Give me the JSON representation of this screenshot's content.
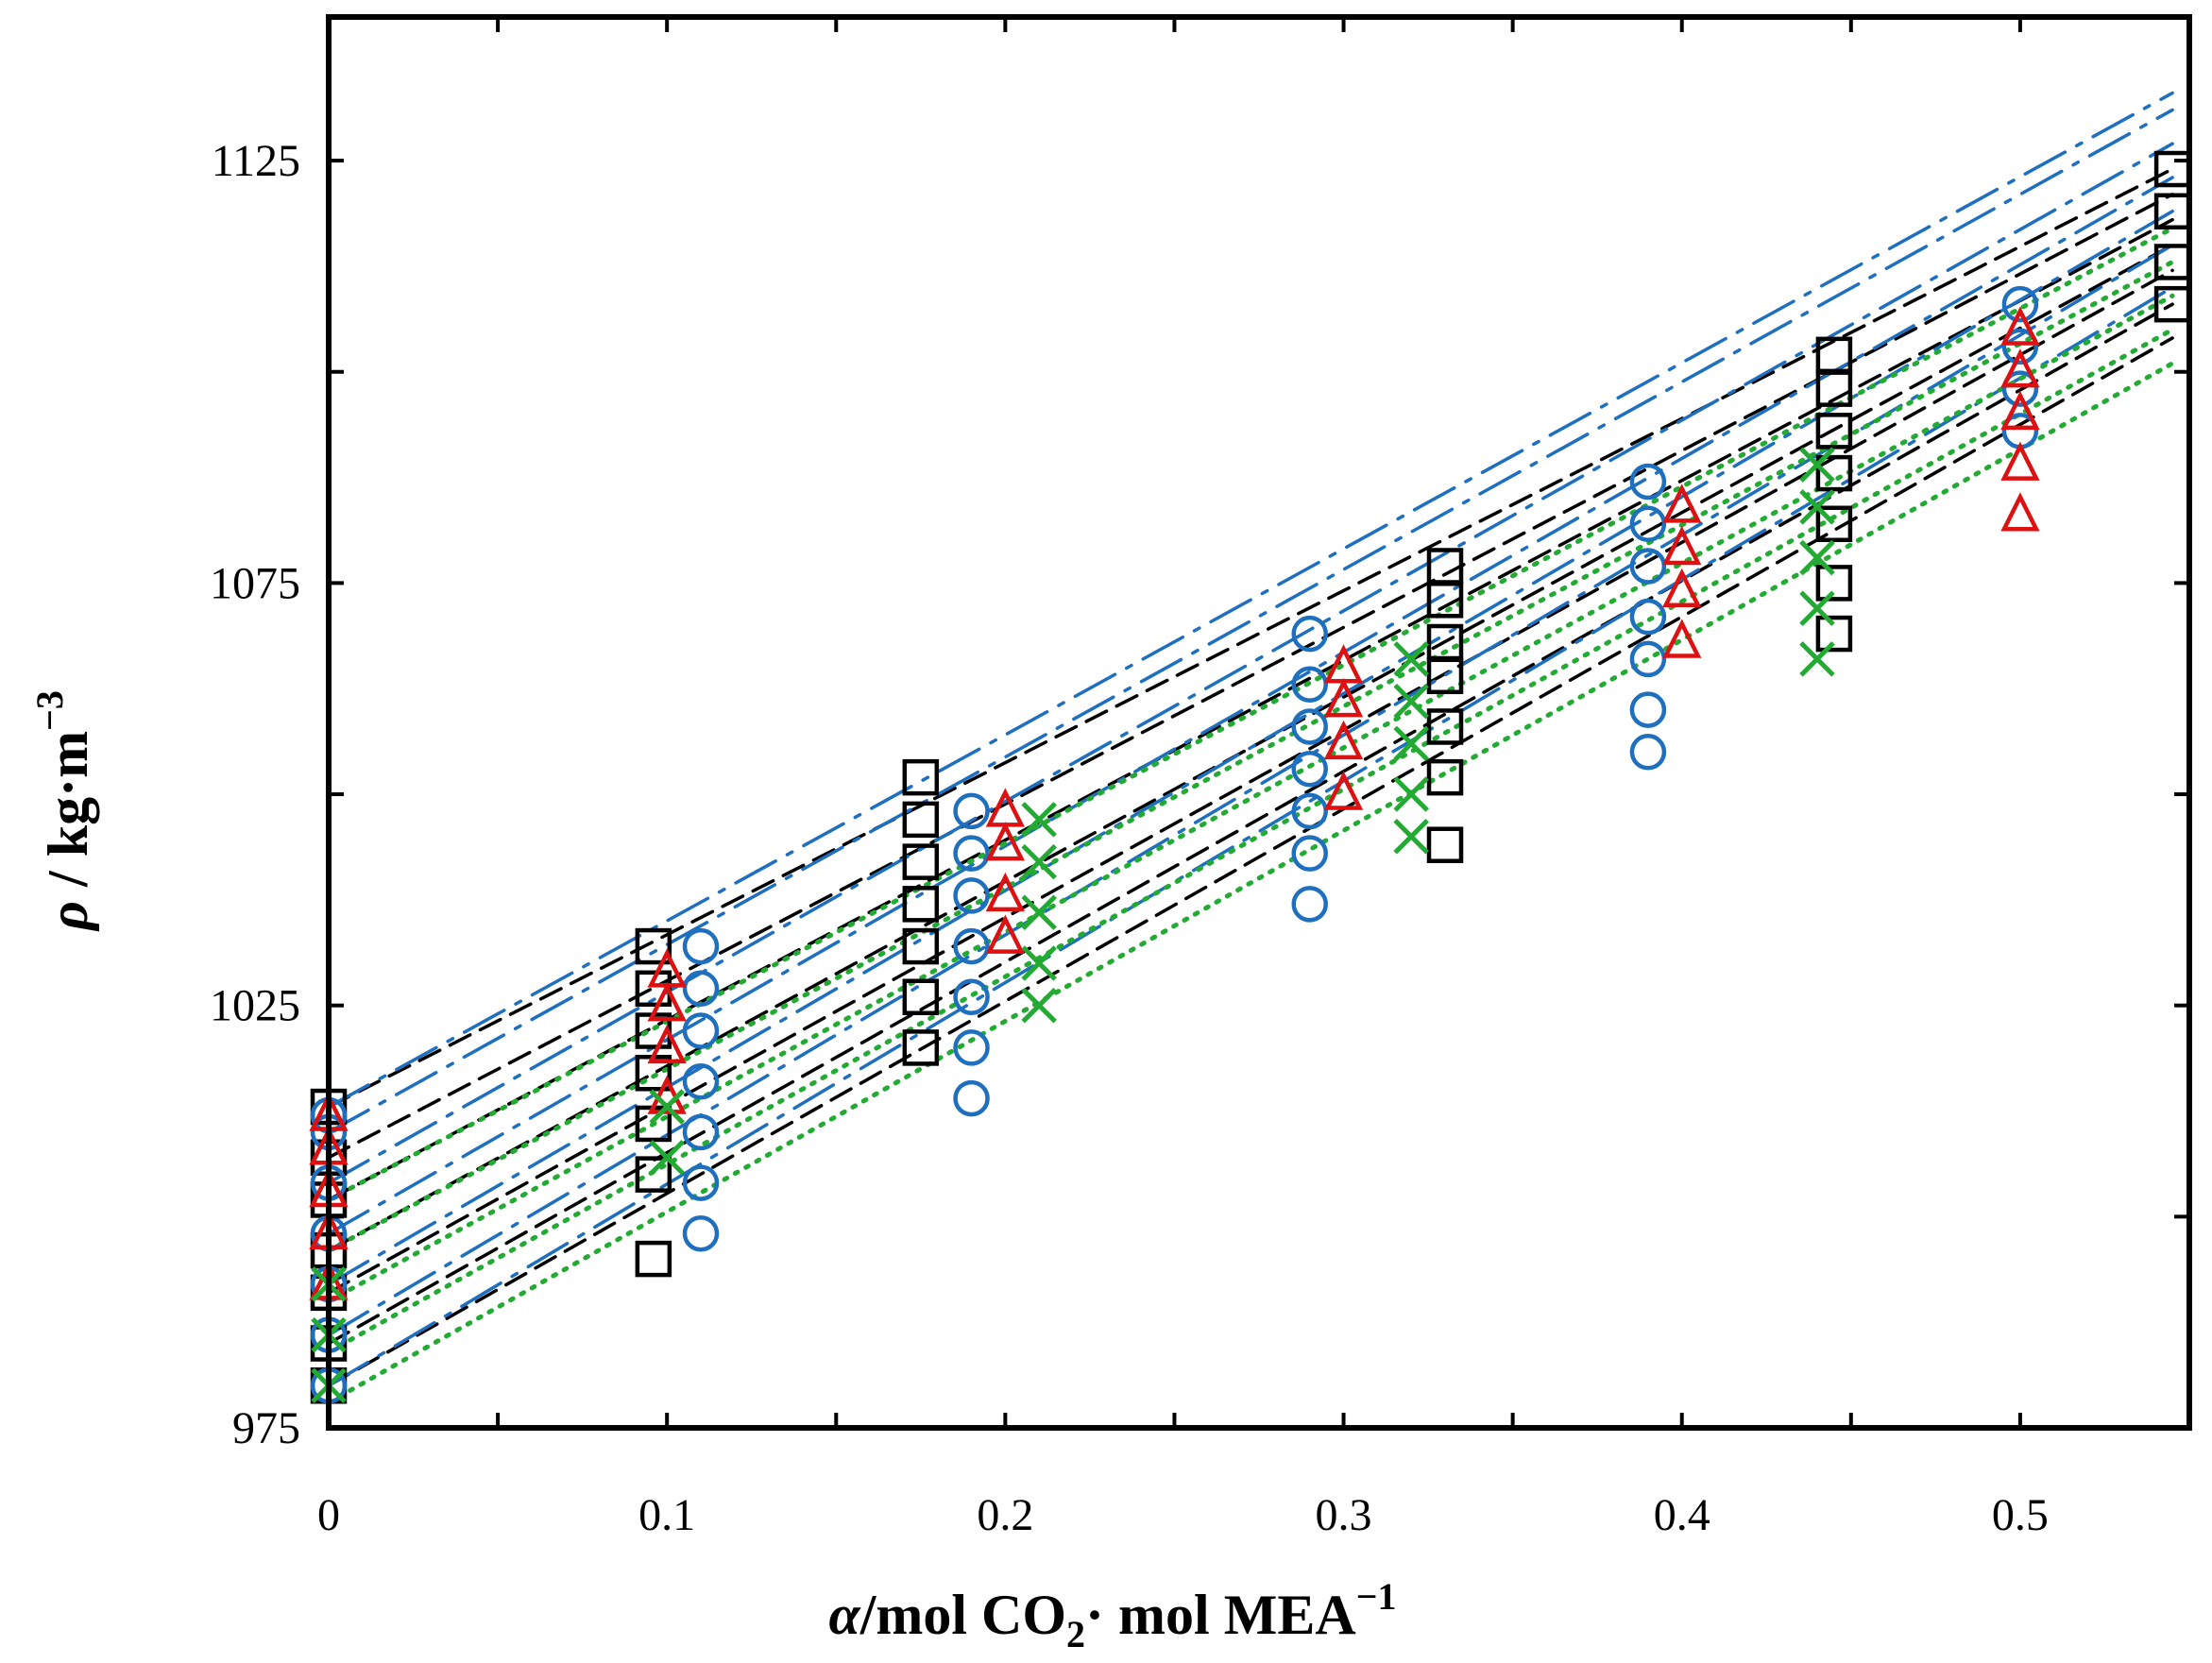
{
  "chart_data": {
    "type": "scatter",
    "title": "",
    "xlabel": {
      "symbol": "α",
      "text": "/mol CO",
      "subscript": "2",
      "text2": "· mol MEA",
      "superscript": "−1"
    },
    "ylabel": {
      "symbol": "ρ",
      "text": " / kg·m",
      "superscript": "−3"
    },
    "xlim": [
      0,
      0.55
    ],
    "ylim": [
      975,
      1142
    ],
    "x_ticks": [
      0,
      0.1,
      0.2,
      0.3,
      0.4,
      0.5
    ],
    "x_tick_labels": [
      "0",
      "0.1",
      "0.2",
      "0.3",
      "0.4",
      "0.5"
    ],
    "y_ticks": [
      975,
      1025,
      1075,
      1125
    ],
    "y_tick_labels": [
      "975",
      "1025",
      "1075",
      "1125"
    ],
    "x_minor_step": 0.05,
    "y_minor_step": 25,
    "colors": {
      "squares": "#000000",
      "circles": "#1f6fbf",
      "triangles": "#dd1111",
      "crosses": "#22aa33"
    },
    "series": [
      {
        "name": "squares",
        "marker": "square",
        "color": "#000000",
        "points": [
          [
            0,
            980
          ],
          [
            0,
            985
          ],
          [
            0,
            991
          ],
          [
            0,
            996
          ],
          [
            0,
            1002
          ],
          [
            0,
            1007
          ],
          [
            0,
            1013
          ],
          [
            0.096,
            995
          ],
          [
            0.096,
            1005
          ],
          [
            0.096,
            1011
          ],
          [
            0.096,
            1017
          ],
          [
            0.096,
            1022
          ],
          [
            0.096,
            1027
          ],
          [
            0.096,
            1032
          ],
          [
            0.175,
            1020
          ],
          [
            0.175,
            1026
          ],
          [
            0.175,
            1032
          ],
          [
            0.175,
            1037
          ],
          [
            0.175,
            1042
          ],
          [
            0.175,
            1047
          ],
          [
            0.175,
            1052
          ],
          [
            0.33,
            1044
          ],
          [
            0.33,
            1052
          ],
          [
            0.33,
            1058
          ],
          [
            0.33,
            1064
          ],
          [
            0.33,
            1068
          ],
          [
            0.33,
            1073
          ],
          [
            0.33,
            1077
          ],
          [
            0.445,
            1069
          ],
          [
            0.445,
            1075
          ],
          [
            0.445,
            1082
          ],
          [
            0.445,
            1088
          ],
          [
            0.445,
            1093
          ],
          [
            0.445,
            1098
          ],
          [
            0.445,
            1102
          ],
          [
            0.545,
            1108
          ],
          [
            0.545,
            1113
          ],
          [
            0.545,
            1119
          ],
          [
            0.545,
            1124
          ]
        ]
      },
      {
        "name": "circles",
        "marker": "circle",
        "color": "#1f6fbf",
        "points": [
          [
            0,
            980
          ],
          [
            0,
            986
          ],
          [
            0,
            992
          ],
          [
            0,
            998
          ],
          [
            0,
            1004
          ],
          [
            0,
            1010
          ],
          [
            0,
            1012
          ],
          [
            0.11,
            998
          ],
          [
            0.11,
            1004
          ],
          [
            0.11,
            1010
          ],
          [
            0.11,
            1016
          ],
          [
            0.11,
            1022
          ],
          [
            0.11,
            1027
          ],
          [
            0.11,
            1032
          ],
          [
            0.19,
            1014
          ],
          [
            0.19,
            1020
          ],
          [
            0.19,
            1026
          ],
          [
            0.19,
            1032
          ],
          [
            0.19,
            1038
          ],
          [
            0.19,
            1043
          ],
          [
            0.19,
            1048
          ],
          [
            0.29,
            1037
          ],
          [
            0.29,
            1043
          ],
          [
            0.29,
            1048
          ],
          [
            0.29,
            1053
          ],
          [
            0.29,
            1058
          ],
          [
            0.29,
            1063
          ],
          [
            0.29,
            1069
          ],
          [
            0.39,
            1055
          ],
          [
            0.39,
            1060
          ],
          [
            0.39,
            1066
          ],
          [
            0.39,
            1071
          ],
          [
            0.39,
            1077
          ],
          [
            0.39,
            1082
          ],
          [
            0.39,
            1087
          ],
          [
            0.5,
            1093
          ],
          [
            0.5,
            1098
          ],
          [
            0.5,
            1103
          ],
          [
            0.5,
            1108
          ]
        ]
      },
      {
        "name": "triangles",
        "marker": "triangle",
        "color": "#dd1111",
        "points": [
          [
            0,
            992
          ],
          [
            0,
            998
          ],
          [
            0,
            1003
          ],
          [
            0,
            1008
          ],
          [
            0,
            1012
          ],
          [
            0.1,
            1014
          ],
          [
            0.1,
            1020
          ],
          [
            0.1,
            1025
          ],
          [
            0.1,
            1029
          ],
          [
            0.2,
            1033
          ],
          [
            0.2,
            1038
          ],
          [
            0.2,
            1044
          ],
          [
            0.2,
            1048
          ],
          [
            0.3,
            1050
          ],
          [
            0.3,
            1056
          ],
          [
            0.3,
            1061
          ],
          [
            0.3,
            1065
          ],
          [
            0.4,
            1068
          ],
          [
            0.4,
            1074
          ],
          [
            0.4,
            1079
          ],
          [
            0.4,
            1084
          ],
          [
            0.5,
            1083
          ],
          [
            0.5,
            1089
          ],
          [
            0.5,
            1095
          ],
          [
            0.5,
            1100
          ],
          [
            0.5,
            1105
          ]
        ]
      },
      {
        "name": "crosses",
        "marker": "cross",
        "color": "#22aa33",
        "points": [
          [
            0,
            980
          ],
          [
            0,
            986
          ],
          [
            0,
            992
          ],
          [
            0.1,
            1007
          ],
          [
            0.1,
            1013
          ],
          [
            0.21,
            1025
          ],
          [
            0.21,
            1030
          ],
          [
            0.21,
            1036
          ],
          [
            0.21,
            1042
          ],
          [
            0.21,
            1047
          ],
          [
            0.32,
            1045
          ],
          [
            0.32,
            1050
          ],
          [
            0.32,
            1056
          ],
          [
            0.32,
            1061
          ],
          [
            0.32,
            1066
          ],
          [
            0.44,
            1066
          ],
          [
            0.44,
            1072
          ],
          [
            0.44,
            1078
          ],
          [
            0.44,
            1084
          ],
          [
            0.44,
            1089
          ]
        ]
      }
    ],
    "fit_lines": [
      {
        "style": "dash",
        "color": "#000000",
        "x": [
          0,
          0.545
        ],
        "y": [
          980,
          1104
        ]
      },
      {
        "style": "dash",
        "color": "#000000",
        "x": [
          0,
          0.545
        ],
        "y": [
          985,
          1108
        ]
      },
      {
        "style": "dash",
        "color": "#000000",
        "x": [
          0,
          0.545
        ],
        "y": [
          991,
          1112
        ]
      },
      {
        "style": "dash",
        "color": "#000000",
        "x": [
          0,
          0.545
        ],
        "y": [
          996,
          1115
        ]
      },
      {
        "style": "dash",
        "color": "#000000",
        "x": [
          0,
          0.545
        ],
        "y": [
          1002,
          1118
        ]
      },
      {
        "style": "dash",
        "color": "#000000",
        "x": [
          0,
          0.545
        ],
        "y": [
          1007,
          1121
        ]
      },
      {
        "style": "dash",
        "color": "#000000",
        "x": [
          0,
          0.545
        ],
        "y": [
          1013,
          1124
        ]
      },
      {
        "style": "dashdot",
        "color": "#1f6fbf",
        "x": [
          0,
          0.545
        ],
        "y": [
          980,
          1110
        ]
      },
      {
        "style": "dashdot",
        "color": "#1f6fbf",
        "x": [
          0,
          0.545
        ],
        "y": [
          986,
          1115
        ]
      },
      {
        "style": "dashdot",
        "color": "#1f6fbf",
        "x": [
          0,
          0.545
        ],
        "y": [
          992,
          1119
        ]
      },
      {
        "style": "dashdot",
        "color": "#1f6fbf",
        "x": [
          0,
          0.545
        ],
        "y": [
          998,
          1123
        ]
      },
      {
        "style": "dashdot",
        "color": "#1f6fbf",
        "x": [
          0,
          0.545
        ],
        "y": [
          1004,
          1127
        ]
      },
      {
        "style": "dashdot",
        "color": "#1f6fbf",
        "x": [
          0,
          0.545
        ],
        "y": [
          1010,
          1131
        ]
      },
      {
        "style": "dashdot",
        "color": "#1f6fbf",
        "x": [
          0,
          0.545
        ],
        "y": [
          1013,
          1133
        ]
      },
      {
        "style": "dot",
        "color": "#22aa33",
        "x": [
          0,
          0.545
        ],
        "y": [
          978,
          1101
        ]
      },
      {
        "style": "dot",
        "color": "#22aa33",
        "x": [
          0,
          0.545
        ],
        "y": [
          984,
          1105
        ]
      },
      {
        "style": "dot",
        "color": "#22aa33",
        "x": [
          0,
          0.545
        ],
        "y": [
          990,
          1109
        ]
      },
      {
        "style": "dot",
        "color": "#22aa33",
        "x": [
          0,
          0.545
        ],
        "y": [
          996,
          1113
        ]
      },
      {
        "style": "dot",
        "color": "#22aa33",
        "x": [
          0,
          0.545
        ],
        "y": [
          1002,
          1117
        ]
      }
    ]
  }
}
